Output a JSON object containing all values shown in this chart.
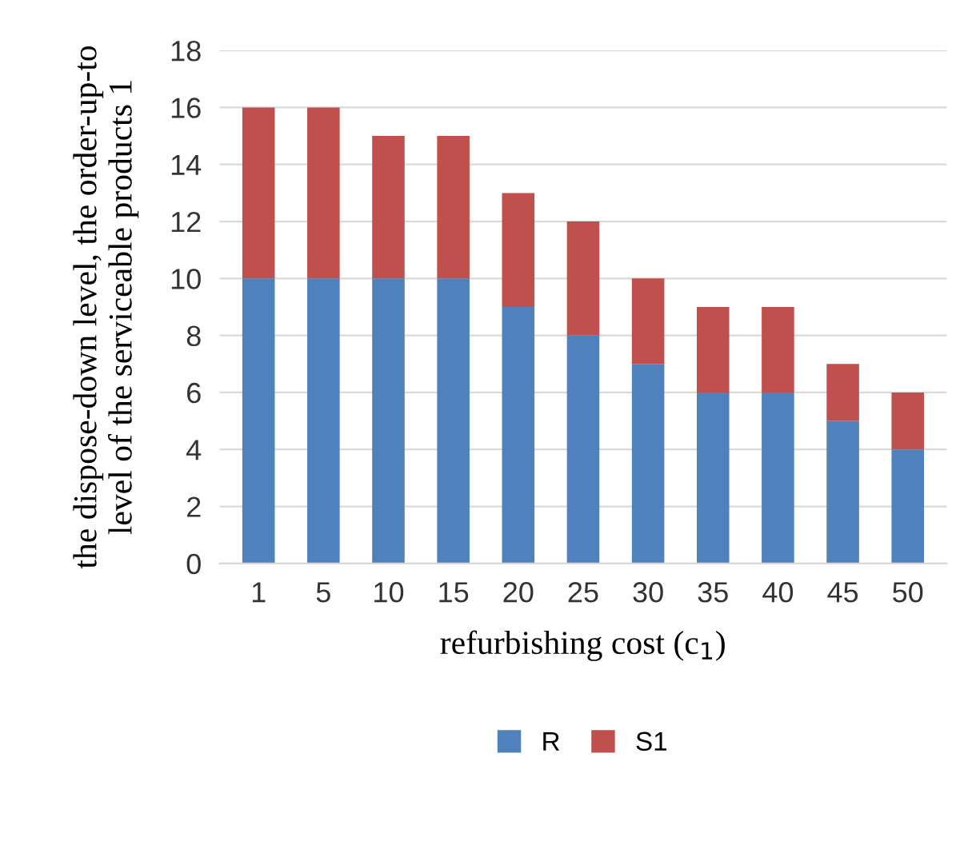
{
  "chart_data": {
    "type": "bar",
    "stacked": true,
    "xlabel": "refurbishing cost (c$_{1}$)",
    "ylabel": "the dispose-down level, the order-up-to\nlevel of the serviceable products 1",
    "categories": [
      "1",
      "5",
      "10",
      "15",
      "20",
      "25",
      "30",
      "35",
      "40",
      "45",
      "50"
    ],
    "series": [
      {
        "name": "R",
        "color": "#4f81bd",
        "values": [
          10,
          10,
          10,
          10,
          9,
          8,
          7,
          6,
          6,
          5,
          4
        ]
      },
      {
        "name": "S1",
        "color": "#c0504d",
        "values": [
          6,
          6,
          5,
          5,
          4,
          4,
          3,
          3,
          3,
          2,
          2
        ]
      }
    ],
    "ylim": [
      0,
      18
    ],
    "yticks": [
      0,
      2,
      4,
      6,
      8,
      10,
      12,
      14,
      16,
      18
    ],
    "grid": "y",
    "legend": "bottom"
  }
}
